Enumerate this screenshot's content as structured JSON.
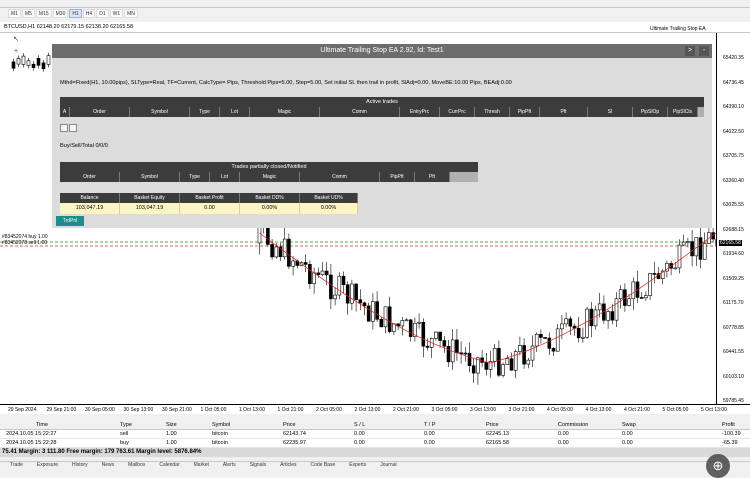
{
  "timeframes": [
    "M1",
    "M5",
    "M15",
    "M30",
    "H1",
    "H4",
    "D1",
    "W1",
    "MN"
  ],
  "active_timeframe": "H1",
  "chart": {
    "title": "BTCUSD,H1  62148.20 62179.15 62138.20 62165.58",
    "ea_corner_label": "Ultimate Trailing Stop EA",
    "price_labels": [
      "65420.35",
      "64736.45",
      "64390.10",
      "64022.50",
      "63705.75",
      "63360.40",
      "63025.55",
      "62688.15",
      "61934.60",
      "61509.25",
      "61175.70",
      "60778.85",
      "60441.55",
      "60103.10",
      "59785.45"
    ],
    "price_tag_current": "62165.58",
    "time_labels": [
      "29 Sep 2024",
      "29 Sep 21:00",
      "30 Sep 05:00",
      "30 Sep 13:00",
      "30 Sep 21:00",
      "1 Oct 05:00",
      "1 Oct 13:00",
      "1 Oct 21:00",
      "2 Oct 05:00",
      "2 Oct 13:00",
      "2 Oct 21:00",
      "3 Oct 05:00",
      "3 Oct 13:00",
      "3 Oct 21:00",
      "4 Oct 05:00",
      "4 Oct 13:00",
      "4 Oct 21:00",
      "5 Oct 05:00",
      "5 Oct 13:00"
    ],
    "line_labels": [
      "#83452074 buy 1.00",
      "#83452078 sell 1.00"
    ],
    "colors": {
      "candle_up": "#ffffff",
      "candle_down": "#000000",
      "ma": "#e02020",
      "buy_line": "#1a8f1a",
      "sell_line": "#c83030"
    }
  },
  "panel": {
    "title": "Ultimate Trailing Stop EA 2.92, Id: Test1",
    "btn_next": ">",
    "btn_min": "-",
    "settings": "Mthd=Fixed(H1, 10.00pips), SLType=Real, TF=Current, CalcType=   Pips, Threshold Pips=5.00, Step=5.00, Set initial SL then trail in profit, SlAdj=0.00, MoveBE:10.00 Pips, BEAdj:0.00",
    "active_trades": {
      "title": "Active trades",
      "columns": [
        "A",
        "Order",
        "Symbol",
        "Type",
        "Lot",
        "Magic",
        "Comm",
        "EntryPrc",
        "CurrPrc",
        "Thresh",
        "PipPft",
        "Pft",
        "Sl",
        "PipSlOp",
        "PipSlCls"
      ]
    },
    "buy_sell_total": "Buy/Sell/Total 0/0/0",
    "partial": {
      "title": "Trades partially closed/Notified",
      "columns": [
        "Order",
        "Symbol",
        "Type",
        "Lot",
        "Magic",
        "Comm",
        "PipPft",
        "Pft"
      ]
    },
    "balance": {
      "columns": [
        "Balance",
        "Basket Equity",
        "Basket Profit",
        "Basket DD%",
        "Basket UD%"
      ],
      "values": [
        "103,047.19",
        "103,047.19",
        "0.00",
        "0.00%",
        "0.00%"
      ]
    },
    "trd_pnl_button": "TrdPnl"
  },
  "terminal": {
    "columns": [
      "Time",
      "Type",
      "Size",
      "Symbol",
      "Price",
      "S / L",
      "T / P",
      "Price",
      "Commission",
      "Swap",
      "Profit"
    ],
    "rows": [
      {
        "time": "2024.10.05 15:22:27",
        "type": "sell",
        "size": "1.00",
        "symbol": "bitcoin",
        "price": "62143.74",
        "sl": "0.00",
        "tp": "0.00",
        "price2": "62245.13",
        "commission": "0.00",
        "swap": "0.00",
        "profit": "-100.39"
      },
      {
        "time": "2024.10.05 15:22:28",
        "type": "buy",
        "size": "1.00",
        "symbol": "bitcoin",
        "price": "62235.97",
        "sl": "0.00",
        "tp": "0.00",
        "price2": "62165.58",
        "commission": "0.00",
        "swap": "0.00",
        "profit": "-65.39"
      }
    ],
    "account_line": "75.41  Margin: 3 111.80  Free margin: 179 763.61  Margin level: 5876.84%",
    "bottom_tabs": [
      "Trade",
      "Exposure",
      "History",
      "News",
      "Mailbox",
      "Calendar",
      "Market",
      "Alerts",
      "Signals",
      "Articles",
      "Code Base",
      "Experts",
      "Journal"
    ]
  }
}
